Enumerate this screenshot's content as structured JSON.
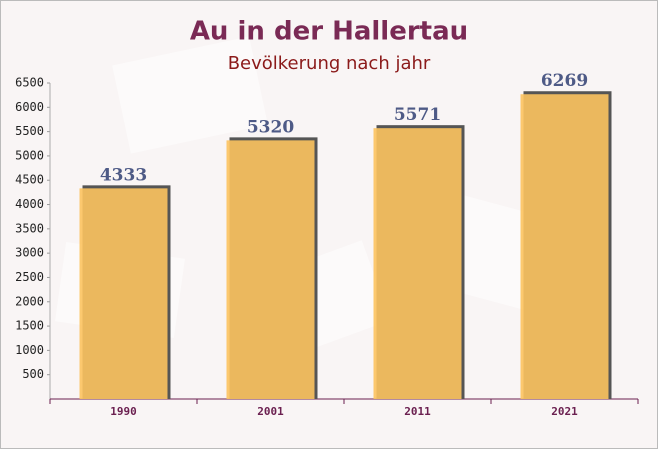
{
  "chart_data": {
    "type": "bar",
    "title": "Au in der Hallertau",
    "subtitle": "Bevölkerung nach jahr",
    "categories": [
      "1990",
      "2001",
      "2011",
      "2021"
    ],
    "values": [
      4333,
      5320,
      5571,
      6269
    ],
    "color": "#fcc35f",
    "ylim": [
      0,
      6500
    ],
    "yticks": [
      500,
      1000,
      1500,
      2000,
      2500,
      3000,
      3500,
      4000,
      4500,
      5000,
      5500,
      6000,
      6500
    ],
    "grid": false
  }
}
